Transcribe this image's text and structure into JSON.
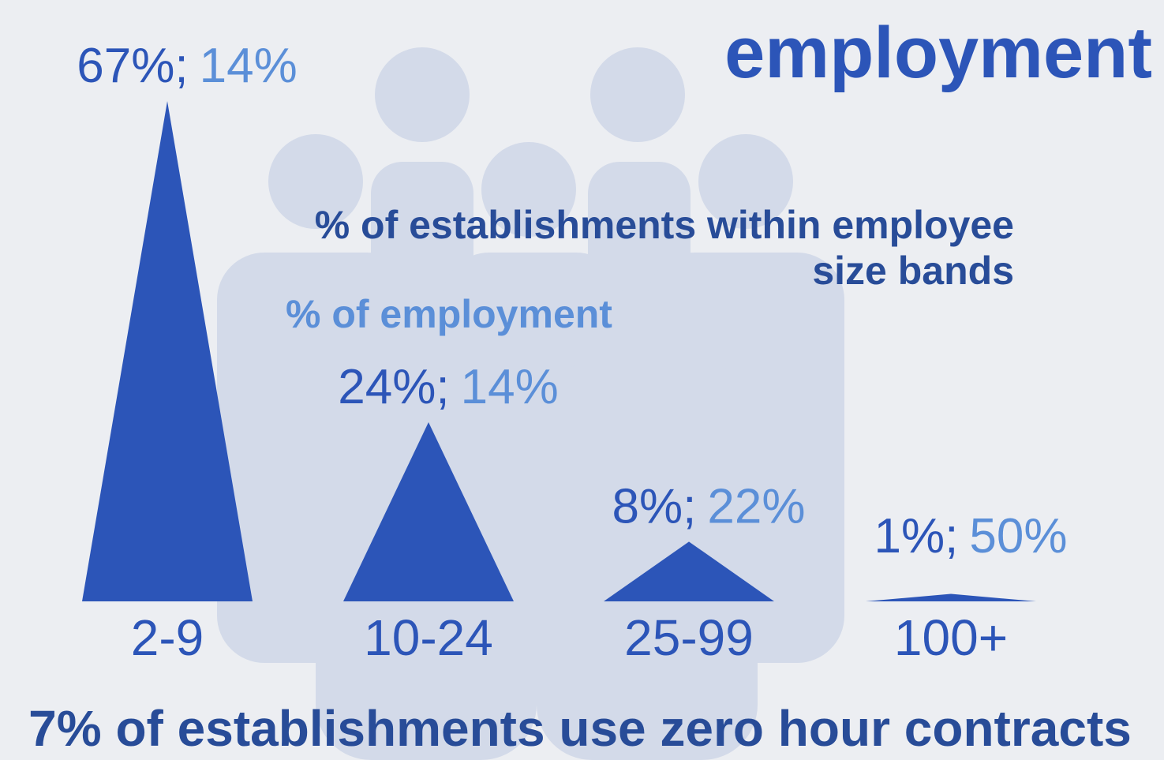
{
  "chart_data": {
    "type": "triangle",
    "title": "employment",
    "annotation": "7% of establishments use zero hour contracts",
    "categories": [
      "2-9",
      "10-24",
      "25-99",
      "100+"
    ],
    "separator": ";",
    "series": [
      {
        "name": "% of establishments within employee size bands",
        "color": "#2c55b8",
        "values": [
          67,
          24,
          8,
          1
        ],
        "value_labels": [
          "67%",
          "24%",
          "8%",
          "1%"
        ]
      },
      {
        "name": "% of employment",
        "color": "#5b8fd8",
        "values": [
          14,
          14,
          22,
          50
        ],
        "value_labels": [
          "14%",
          "14%",
          "22%",
          "50%"
        ]
      }
    ]
  }
}
